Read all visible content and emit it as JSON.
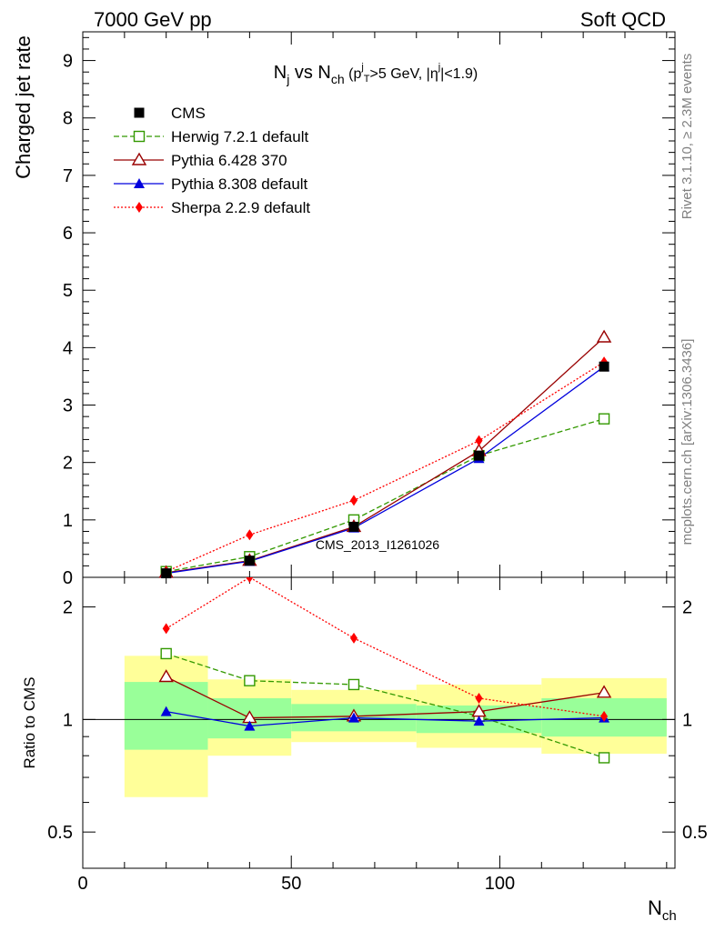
{
  "header": {
    "left": "7000 GeV pp",
    "right": "Soft QCD"
  },
  "side": {
    "top": "Rivet 3.1.10, ≥ 2.3M events",
    "bottom": "mcplots.cern.ch [arXiv:1306.3436]"
  },
  "analysis_id": "CMS_2013_I1261026",
  "title": {
    "main": "N",
    "j_sub": "j",
    "vs": " vs N",
    "ch_sub": "ch",
    "cut": " (p",
    "cut_sup": "j",
    "cut_sub": "T",
    "cut_rest": ">5 GeV, |η",
    "cut_sup2": "j",
    "cut_end": "|<1.9)"
  },
  "colors": {
    "CMS": "#000000",
    "Herwig": "#339900",
    "Pythia6": "#990000",
    "Pythia8": "#0000dd",
    "Sherpa": "#ff0000",
    "band_inner": "#99ff99",
    "band_outer": "#ffff99"
  },
  "chart_data": [
    {
      "type": "line",
      "ylabel": "Charged jet rate",
      "xlim": [
        0,
        142
      ],
      "ylim": [
        0,
        9.5
      ],
      "yticks": [
        0,
        1,
        2,
        3,
        4,
        5,
        6,
        7,
        8,
        9
      ],
      "x": [
        20,
        40,
        65,
        95,
        125
      ],
      "series": [
        {
          "name": "CMS",
          "marker": "square",
          "values": [
            0.07,
            0.29,
            0.88,
            2.12,
            3.67
          ]
        },
        {
          "name": "Herwig 7.2.1 default",
          "marker": "open-square",
          "dash": "dashed",
          "values": [
            0.1,
            0.36,
            1.0,
            2.12,
            2.76
          ]
        },
        {
          "name": "Pythia 6.428 370",
          "marker": "open-triangle",
          "dash": "solid",
          "values": [
            0.08,
            0.29,
            0.88,
            2.2,
            4.18
          ]
        },
        {
          "name": "Pythia 8.308 default",
          "marker": "triangle",
          "dash": "solid",
          "values": [
            0.07,
            0.28,
            0.86,
            2.07,
            3.67
          ]
        },
        {
          "name": "Sherpa 2.2.9 default",
          "marker": "diamond",
          "dash": "dotted",
          "values": [
            0.1,
            0.74,
            1.34,
            2.38,
            3.75
          ]
        }
      ]
    },
    {
      "type": "line",
      "ylabel": "Ratio to CMS",
      "xlabel": "N",
      "xlabel_sub": "ch",
      "yscale": "log",
      "xlim": [
        0,
        142
      ],
      "ylim": [
        0.4,
        2.4
      ],
      "xticks": [
        0,
        50,
        100
      ],
      "yticks": [
        0.5,
        1,
        2
      ],
      "bands": [
        {
          "x": [
            10,
            30
          ],
          "inner": [
            0.83,
            1.26
          ],
          "outer": [
            0.62,
            1.48
          ]
        },
        {
          "x": [
            30,
            50
          ],
          "inner": [
            0.89,
            1.14
          ],
          "outer": [
            0.8,
            1.28
          ]
        },
        {
          "x": [
            50,
            80
          ],
          "inner": [
            0.93,
            1.1
          ],
          "outer": [
            0.87,
            1.2
          ]
        },
        {
          "x": [
            80,
            110
          ],
          "inner": [
            0.92,
            1.09
          ],
          "outer": [
            0.84,
            1.24
          ]
        },
        {
          "x": [
            110,
            140
          ],
          "inner": [
            0.9,
            1.14
          ],
          "outer": [
            0.81,
            1.29
          ]
        }
      ],
      "x": [
        20,
        40,
        65,
        95,
        125
      ],
      "series": [
        {
          "name": "Herwig 7.2.1 default",
          "values": [
            1.5,
            1.27,
            1.24,
            1.02,
            0.79
          ]
        },
        {
          "name": "Pythia 6.428 370",
          "values": [
            1.3,
            1.01,
            1.02,
            1.05,
            1.18
          ]
        },
        {
          "name": "Pythia 8.308 default",
          "values": [
            1.05,
            0.96,
            1.01,
            0.99,
            1.01
          ]
        },
        {
          "name": "Sherpa 2.2.9 default",
          "values": [
            1.75,
            2.4,
            1.65,
            1.14,
            1.02
          ]
        }
      ]
    }
  ]
}
